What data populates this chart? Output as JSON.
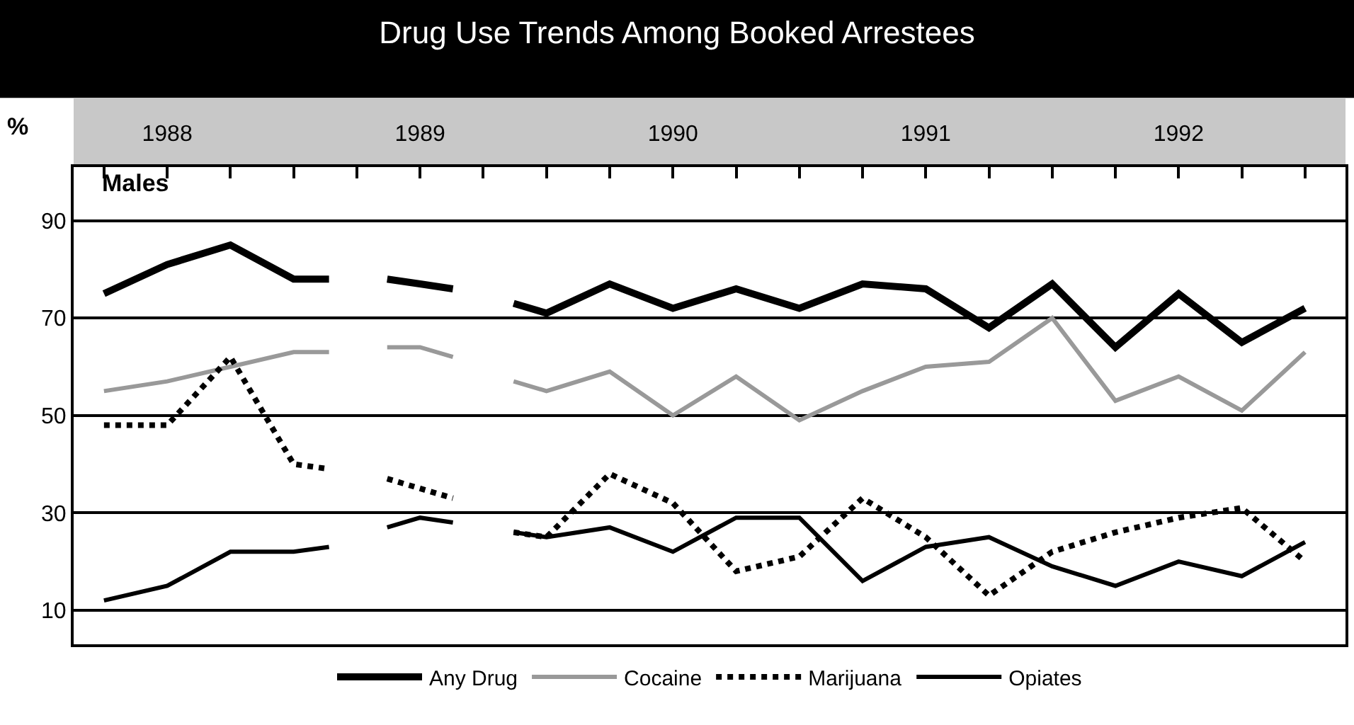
{
  "chart_data": {
    "type": "line",
    "title": "Drug Use Trends Among Booked Arrestees",
    "ylabel": "%",
    "annotations": [
      "Males"
    ],
    "xlim": [
      1988.13,
      1993.16
    ],
    "xticks": [
      {
        "value": 1988.25,
        "label": null
      },
      {
        "value": 1988.5,
        "label": "1988"
      },
      {
        "value": 1988.75,
        "label": null
      },
      {
        "value": 1989.0,
        "label": null
      },
      {
        "value": 1989.25,
        "label": null
      },
      {
        "value": 1989.5,
        "label": "1989"
      },
      {
        "value": 1989.75,
        "label": null
      },
      {
        "value": 1990.0,
        "label": null
      },
      {
        "value": 1990.25,
        "label": null
      },
      {
        "value": 1990.5,
        "label": "1990"
      },
      {
        "value": 1990.75,
        "label": null
      },
      {
        "value": 1991.0,
        "label": null
      },
      {
        "value": 1991.25,
        "label": null
      },
      {
        "value": 1991.5,
        "label": "1991"
      },
      {
        "value": 1991.75,
        "label": null
      },
      {
        "value": 1992.0,
        "label": null
      },
      {
        "value": 1992.25,
        "label": null
      },
      {
        "value": 1992.5,
        "label": "1992"
      },
      {
        "value": 1992.75,
        "label": null
      },
      {
        "value": 1993.0,
        "label": null
      }
    ],
    "ylim": [
      3,
      101
    ],
    "yticks": [
      10,
      30,
      50,
      70,
      90
    ],
    "grid": "y",
    "legend": "bottom",
    "x": [
      1988.25,
      1988.5,
      1988.75,
      1989.0,
      1989.14,
      1989.25,
      1989.37,
      1989.5,
      1989.63,
      1989.75,
      1989.87,
      1990.0,
      1990.25,
      1990.5,
      1990.75,
      1991.0,
      1991.25,
      1991.5,
      1991.75,
      1992.0,
      1992.25,
      1992.5,
      1992.75,
      1993.0
    ],
    "series": [
      {
        "name": "Any Drug",
        "color": "#000000",
        "line_style": "solid",
        "values": [
          75,
          81,
          85,
          78,
          78,
          null,
          78,
          77,
          76,
          null,
          73,
          71,
          77,
          72,
          76,
          72,
          77,
          76,
          68,
          77,
          64,
          75,
          65,
          72
        ]
      },
      {
        "name": "Cocaine",
        "color": "#999999",
        "line_style": "solid",
        "values": [
          55,
          57,
          60,
          63,
          63,
          null,
          64,
          64,
          62,
          null,
          57,
          55,
          59,
          50,
          58,
          49,
          55,
          60,
          61,
          70,
          53,
          58,
          51,
          63
        ]
      },
      {
        "name": "Marijuana",
        "color": "#000000",
        "line_style": "dotted",
        "values": [
          48,
          48,
          62,
          40,
          39,
          null,
          37,
          35,
          33,
          null,
          26,
          25,
          38,
          32,
          18,
          21,
          33,
          25,
          13,
          22,
          26,
          29,
          31,
          20
        ]
      },
      {
        "name": "Opiates",
        "color": "#000000",
        "line_style": "solid",
        "values": [
          12,
          15,
          22,
          22,
          23,
          null,
          27,
          29,
          28,
          null,
          26,
          25,
          27,
          22,
          29,
          29,
          16,
          23,
          25,
          19,
          15,
          20,
          17,
          24
        ]
      }
    ]
  }
}
